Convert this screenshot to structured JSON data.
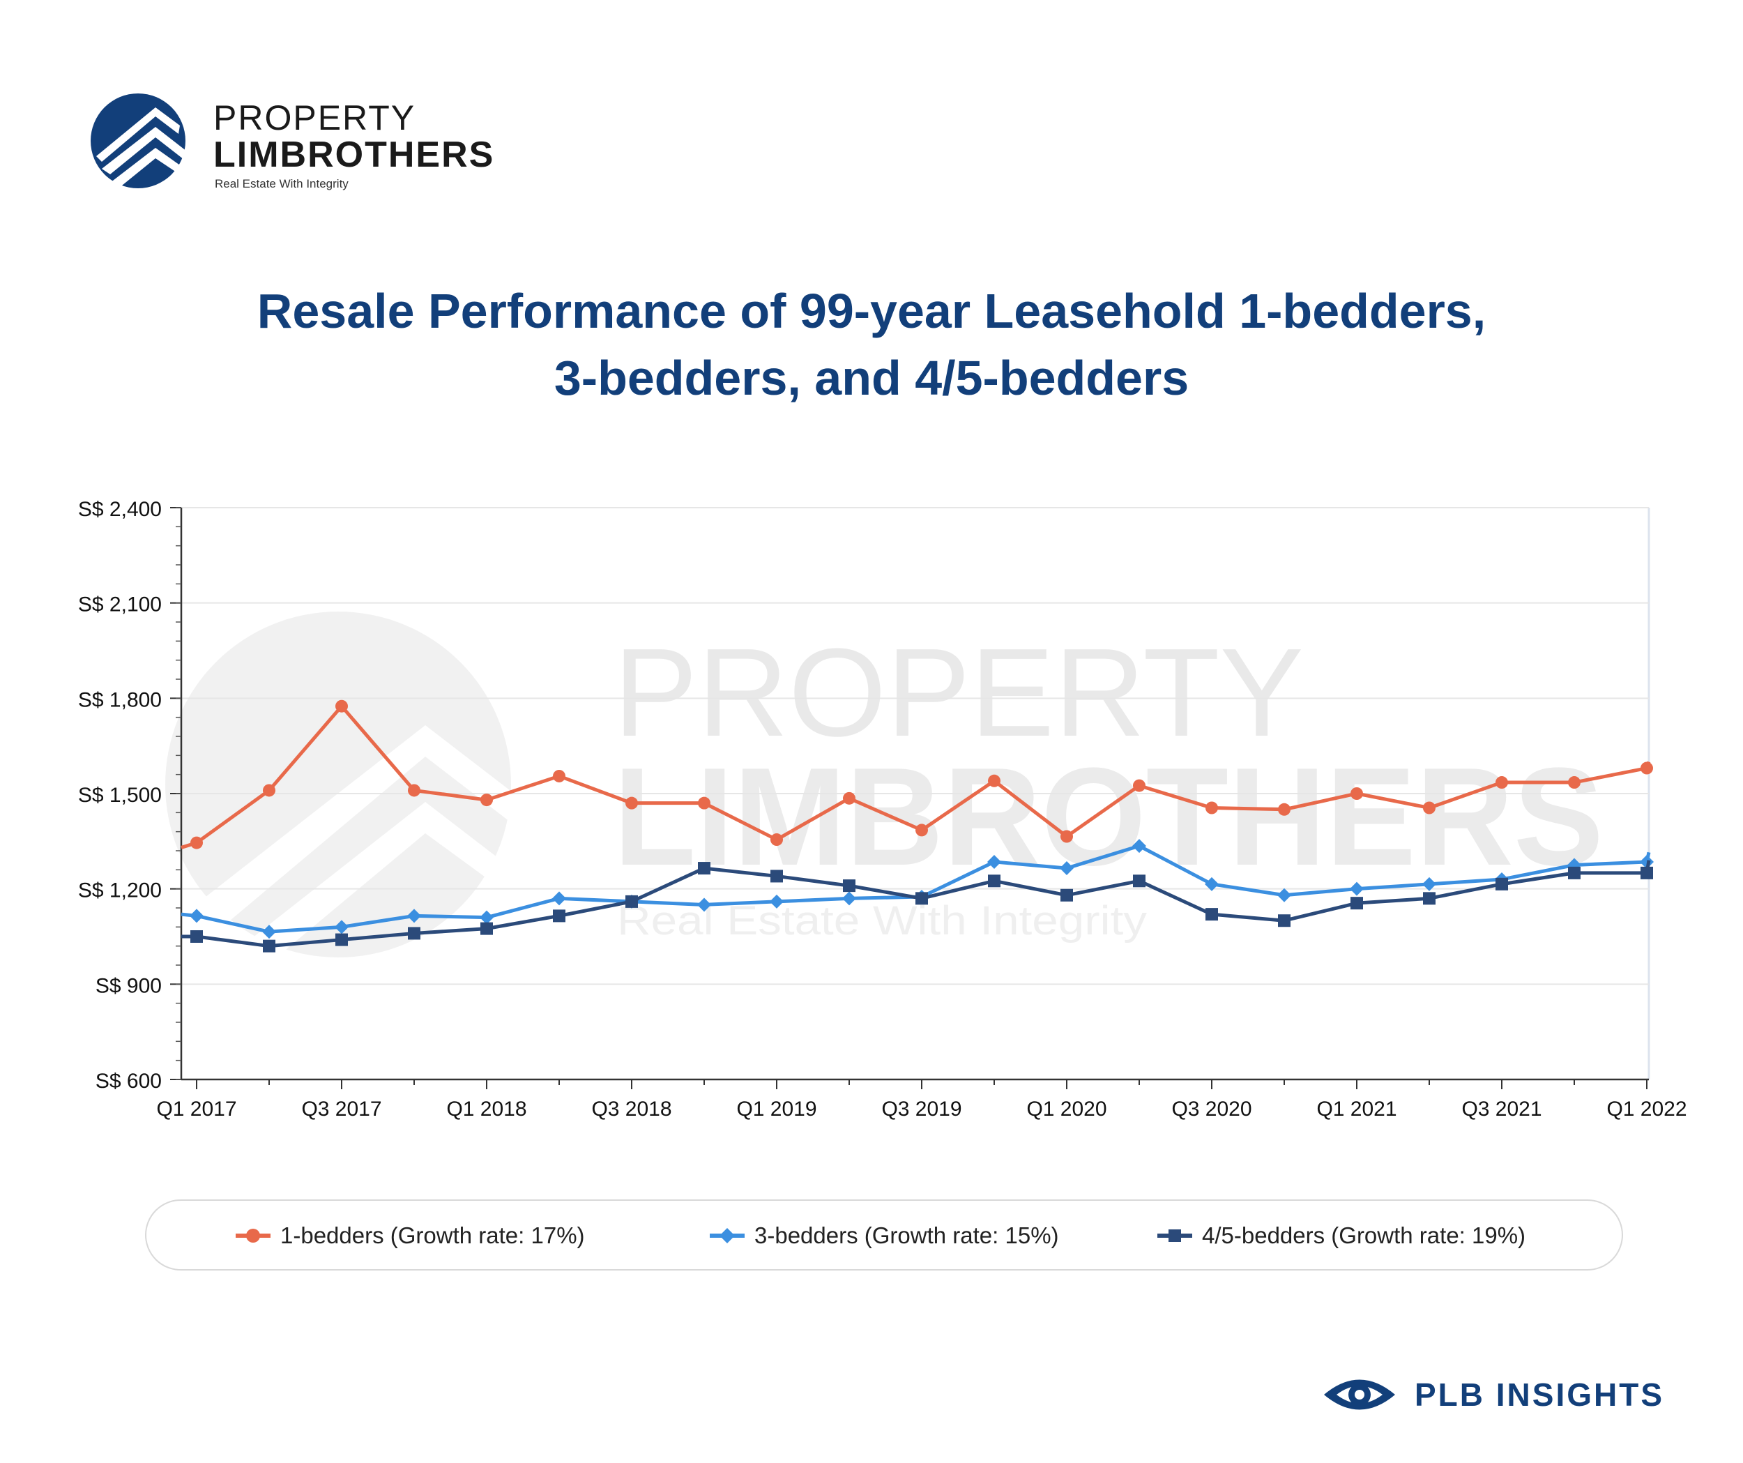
{
  "brand": {
    "line1": "PROPERTY",
    "line2": "LIMBROTHERS",
    "tagline": "Real Estate With Integrity"
  },
  "title": {
    "line1": "Resale Performance of 99-year Leasehold 1-bedders,",
    "line2": "3-bedders, and 4/5-bedders"
  },
  "watermark": {
    "line1": "PROPERTY",
    "line2": "LIMBROTHERS",
    "line3": "Real Estate With Integrity"
  },
  "footer": {
    "label": "PLB INSIGHTS"
  },
  "colors": {
    "brand_blue": "#123f7a",
    "series_1": "#e8694a",
    "series_2": "#3b8fe0",
    "series_3": "#2b4a7a"
  },
  "chart_data": {
    "type": "line",
    "title": "Resale Performance of 99-year Leasehold 1-bedders, 3-bedders, and 4/5-bedders",
    "xlabel": "",
    "ylabel": "",
    "ylim": [
      600,
      2400
    ],
    "yticks": [
      "S$ 600",
      "S$ 900",
      "S$ 1,200",
      "S$ 1,500",
      "S$ 1,800",
      "S$ 2,100",
      "S$ 2,400"
    ],
    "ytick_values": [
      600,
      900,
      1200,
      1500,
      1800,
      2100,
      2400
    ],
    "x_tick_labels": [
      "Q1 2017",
      "Q3 2017",
      "Q1 2018",
      "Q3 2018",
      "Q1 2019",
      "Q3 2019",
      "Q1 2020",
      "Q3 2020",
      "Q1 2021",
      "Q3 2021",
      "Q1 2022"
    ],
    "categories": [
      "Q1 2017",
      "Q2 2017",
      "Q3 2017",
      "Q4 2017",
      "Q1 2018",
      "Q2 2018",
      "Q3 2018",
      "Q4 2018",
      "Q1 2019",
      "Q2 2019",
      "Q3 2019",
      "Q4 2019",
      "Q1 2020",
      "Q2 2020",
      "Q3 2020",
      "Q4 2020",
      "Q1 2021",
      "Q2 2021",
      "Q3 2021",
      "Q4 2021",
      "Q1 2022"
    ],
    "grid": true,
    "legend_position": "bottom",
    "series": [
      {
        "name": "1-bedders (Growth rate: 17%)",
        "color": "#e8694a",
        "marker": "circle",
        "values": [
          1345,
          1510,
          1775,
          1510,
          1480,
          1555,
          1470,
          1470,
          1355,
          1485,
          1385,
          1540,
          1365,
          1525,
          1455,
          1450,
          1500,
          1455,
          1535,
          1535,
          1580
        ],
        "line_start": 1330,
        "line_end": 1600
      },
      {
        "name": "3-bedders (Growth rate: 15%)",
        "color": "#3b8fe0",
        "marker": "diamond",
        "values": [
          1115,
          1065,
          1080,
          1115,
          1110,
          1170,
          1160,
          1150,
          1160,
          1170,
          1175,
          1285,
          1265,
          1335,
          1215,
          1180,
          1200,
          1215,
          1230,
          1275,
          1285
        ],
        "line_start": 1120,
        "line_end": 1315
      },
      {
        "name": "4/5-bedders (Growth rate: 19%)",
        "color": "#2b4a7a",
        "marker": "square",
        "values": [
          1050,
          1020,
          1040,
          1060,
          1075,
          1115,
          1160,
          1265,
          1240,
          1210,
          1170,
          1225,
          1180,
          1225,
          1120,
          1100,
          1155,
          1170,
          1215,
          1250,
          1250
        ],
        "line_start": 1050,
        "line_end": 1290
      }
    ]
  }
}
